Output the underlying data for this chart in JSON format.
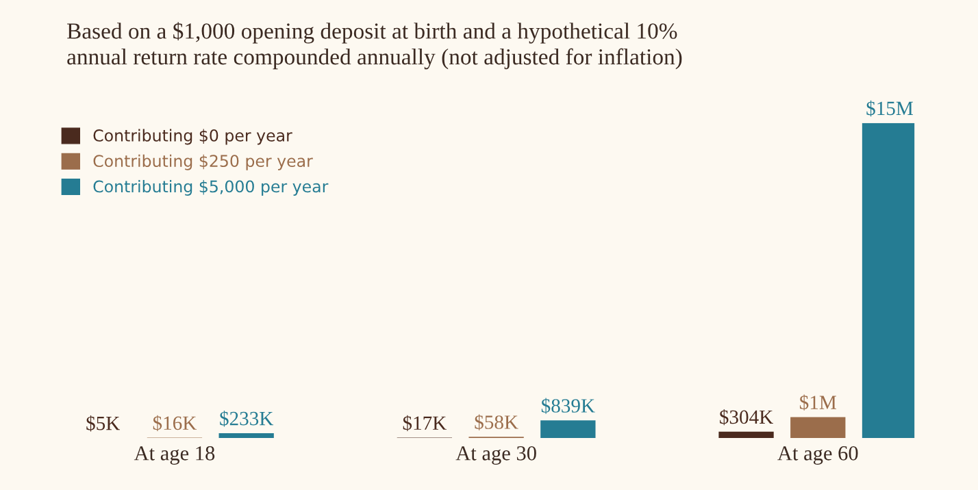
{
  "chart_data": {
    "type": "bar",
    "title": "Based on a $1,000 opening deposit at birth and a hypothetical 10%\nannual return rate compounded annually (not adjusted for inflation)",
    "categories": [
      "At age 18",
      "At age 30",
      "At age 60"
    ],
    "series": [
      {
        "name": "Contributing $0 per year",
        "color": "#4a2a1e",
        "values": [
          5000,
          17000,
          304000
        ],
        "value_labels": [
          "$5K",
          "$17K",
          "$304K"
        ]
      },
      {
        "name": "Contributing $250 per year",
        "color": "#9b6d4b",
        "values": [
          16000,
          58000,
          1000000
        ],
        "value_labels": [
          "$16K",
          "$58K",
          "$1M"
        ]
      },
      {
        "name": "Contributing $5,000 per year",
        "color": "#257c93",
        "values": [
          233000,
          839000,
          15000000
        ],
        "value_labels": [
          "$233K",
          "$839K",
          "$15M"
        ]
      }
    ],
    "legend": "top left",
    "tick_labels": "x",
    "grid": false
  }
}
